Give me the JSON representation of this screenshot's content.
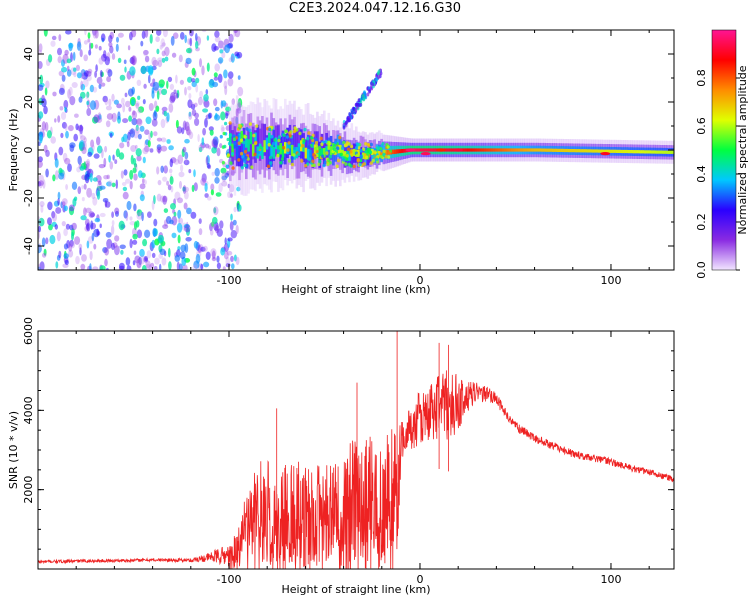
{
  "title": "C2E3.2024.047.12.16.G30",
  "chart_data": [
    {
      "type": "heatmap",
      "title": "C2E3.2024.047.12.16.G30",
      "xlabel": "Height of straight line (km)",
      "ylabel": "Frequency (Hz)",
      "xlim": [
        -200,
        133
      ],
      "ylim": [
        -50,
        50
      ],
      "x_ticks": [
        -100,
        0,
        100
      ],
      "y_ticks": [
        -40,
        -20,
        0,
        20,
        40
      ],
      "grid": false,
      "colorbar": {
        "label": "Normalized spectral amplitude",
        "range": [
          0,
          1
        ],
        "ticks": [
          0.0,
          0.2,
          0.4,
          0.6,
          0.8
        ],
        "colors": [
          "#f2e6ff",
          "#8a2be2",
          "#2a00ff",
          "#00c8ff",
          "#00ff40",
          "#e0ff00",
          "#ff8c00",
          "#ff0000",
          "#ff1493"
        ]
      },
      "ridge": {
        "description_points": [
          {
            "x": -100,
            "freq": 2,
            "width": 12,
            "amp": 0.45
          },
          {
            "x": -60,
            "freq": 1,
            "width": 10,
            "amp": 0.55
          },
          {
            "x": -30,
            "freq": -2,
            "width": 6,
            "amp": 0.6
          },
          {
            "x": -5,
            "freq": 0,
            "width": 3,
            "amp": 0.95
          },
          {
            "x": 20,
            "freq": 0,
            "width": 3,
            "amp": 0.9
          },
          {
            "x": 60,
            "freq": 0,
            "width": 3,
            "amp": 0.7
          },
          {
            "x": 133,
            "freq": -1,
            "width": 3,
            "amp": 0.6
          }
        ],
        "side_track": [
          {
            "x": -40,
            "freq": 10
          },
          {
            "x": -25,
            "freq": 25
          },
          {
            "x": -20,
            "freq": 33
          }
        ]
      },
      "noise_region": {
        "x_from": -200,
        "x_to": -100,
        "amp": 0.3
      }
    },
    {
      "type": "line",
      "xlabel": "Height of straight line (km)",
      "ylabel": "SNR (10 * v/v)",
      "xlim": [
        -200,
        133
      ],
      "ylim": [
        0,
        6000
      ],
      "x_ticks": [
        -100,
        0,
        100
      ],
      "y_ticks": [
        2000,
        4000,
        6000
      ],
      "grid": false,
      "series": [
        {
          "color": "#ee2222",
          "x": [
            -200,
            -180,
            -160,
            -140,
            -120,
            -110,
            -100,
            -95,
            -90,
            -85,
            -80,
            -75,
            -70,
            -65,
            -60,
            -55,
            -50,
            -45,
            -40,
            -35,
            -30,
            -25,
            -20,
            -15,
            -12,
            -10,
            -5,
            0,
            5,
            10,
            15,
            20,
            25,
            30,
            35,
            40,
            45,
            50,
            60,
            70,
            80,
            90,
            100,
            110,
            120,
            133
          ],
          "y": [
            180,
            200,
            210,
            230,
            220,
            300,
            350,
            700,
            1100,
            1500,
            1600,
            1200,
            1400,
            1500,
            1300,
            1500,
            1400,
            1700,
            1600,
            1800,
            1700,
            1900,
            1700,
            2100,
            2000,
            3300,
            3500,
            3800,
            3900,
            4200,
            4100,
            4200,
            4350,
            4450,
            4400,
            4300,
            3900,
            3600,
            3300,
            3100,
            2900,
            2800,
            2700,
            2550,
            2450,
            2250
          ],
          "noise": [
            40,
            40,
            40,
            40,
            50,
            120,
            300,
            600,
            900,
            1200,
            1300,
            1200,
            1300,
            1300,
            1300,
            1300,
            1300,
            1400,
            1400,
            1500,
            1500,
            1500,
            1500,
            1700,
            1500,
            500,
            600,
            700,
            800,
            900,
            900,
            700,
            400,
            250,
            200,
            150,
            130,
            120,
            110,
            100,
            100,
            90,
            90,
            90,
            80,
            80
          ]
        }
      ],
      "spikes": [
        {
          "x": -12,
          "y": 6000
        },
        {
          "x": -33,
          "y": 4700
        },
        {
          "x": -75,
          "y": 4050
        },
        {
          "x": 10,
          "y": 5700
        },
        {
          "x": 15,
          "y": 5650
        }
      ]
    }
  ]
}
